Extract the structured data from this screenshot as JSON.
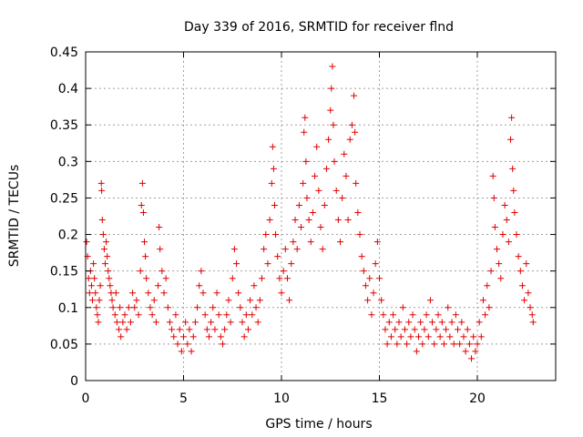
{
  "chart_data": {
    "type": "scatter",
    "title": "Day 339 of 2016, SRMTID for receiver flnd",
    "xlabel": "GPS time / hours",
    "ylabel": "SRMTID / TECUs",
    "xlim": [
      0,
      24
    ],
    "ylim": [
      0,
      0.45
    ],
    "x_ticks": [
      0,
      5,
      10,
      15,
      20
    ],
    "x_tick_labels": [
      "0",
      "5",
      "10",
      "15",
      "20"
    ],
    "y_ticks": [
      0,
      0.05,
      0.1,
      0.15,
      0.2,
      0.25,
      0.3,
      0.35,
      0.4,
      0.45
    ],
    "y_tick_labels": [
      "0",
      "0.05",
      "0.1",
      "0.15",
      "0.2",
      "0.25",
      "0.3",
      "0.35",
      "0.4",
      "0.45"
    ],
    "grid": true,
    "marker": "plus",
    "color": "#e00000",
    "series": [
      {
        "name": "SRMTID",
        "points": [
          [
            0.05,
            0.19
          ],
          [
            0.1,
            0.17
          ],
          [
            0.15,
            0.14
          ],
          [
            0.2,
            0.12
          ],
          [
            0.25,
            0.15
          ],
          [
            0.3,
            0.13
          ],
          [
            0.35,
            0.11
          ],
          [
            0.4,
            0.16
          ],
          [
            0.45,
            0.14
          ],
          [
            0.5,
            0.12
          ],
          [
            0.55,
            0.1
          ],
          [
            0.6,
            0.09
          ],
          [
            0.65,
            0.08
          ],
          [
            0.7,
            0.11
          ],
          [
            0.75,
            0.13
          ],
          [
            0.8,
            0.27
          ],
          [
            0.82,
            0.26
          ],
          [
            0.85,
            0.22
          ],
          [
            0.9,
            0.2
          ],
          [
            0.95,
            0.18
          ],
          [
            1.0,
            0.16
          ],
          [
            1.05,
            0.19
          ],
          [
            1.1,
            0.17
          ],
          [
            1.15,
            0.15
          ],
          [
            1.2,
            0.14
          ],
          [
            1.25,
            0.13
          ],
          [
            1.3,
            0.12
          ],
          [
            1.35,
            0.11
          ],
          [
            1.4,
            0.1
          ],
          [
            1.5,
            0.09
          ],
          [
            1.55,
            0.12
          ],
          [
            1.6,
            0.08
          ],
          [
            1.7,
            0.07
          ],
          [
            1.75,
            0.1
          ],
          [
            1.8,
            0.06
          ],
          [
            1.9,
            0.08
          ],
          [
            2.0,
            0.09
          ],
          [
            2.1,
            0.07
          ],
          [
            2.2,
            0.1
          ],
          [
            2.3,
            0.08
          ],
          [
            2.4,
            0.12
          ],
          [
            2.5,
            0.1
          ],
          [
            2.6,
            0.11
          ],
          [
            2.7,
            0.09
          ],
          [
            2.8,
            0.15
          ],
          [
            2.85,
            0.24
          ],
          [
            2.9,
            0.27
          ],
          [
            2.95,
            0.23
          ],
          [
            3.0,
            0.19
          ],
          [
            3.05,
            0.17
          ],
          [
            3.1,
            0.14
          ],
          [
            3.2,
            0.12
          ],
          [
            3.3,
            0.1
          ],
          [
            3.4,
            0.09
          ],
          [
            3.5,
            0.11
          ],
          [
            3.6,
            0.08
          ],
          [
            3.7,
            0.13
          ],
          [
            3.75,
            0.21
          ],
          [
            3.8,
            0.18
          ],
          [
            3.9,
            0.15
          ],
          [
            4.0,
            0.12
          ],
          [
            4.1,
            0.14
          ],
          [
            4.2,
            0.1
          ],
          [
            4.3,
            0.08
          ],
          [
            4.4,
            0.07
          ],
          [
            4.5,
            0.06
          ],
          [
            4.6,
            0.09
          ],
          [
            4.7,
            0.05
          ],
          [
            4.8,
            0.07
          ],
          [
            4.9,
            0.04
          ],
          [
            5.0,
            0.06
          ],
          [
            5.1,
            0.08
          ],
          [
            5.2,
            0.05
          ],
          [
            5.3,
            0.07
          ],
          [
            5.4,
            0.04
          ],
          [
            5.5,
            0.06
          ],
          [
            5.6,
            0.08
          ],
          [
            5.7,
            0.1
          ],
          [
            5.8,
            0.13
          ],
          [
            5.9,
            0.15
          ],
          [
            6.0,
            0.12
          ],
          [
            6.1,
            0.09
          ],
          [
            6.2,
            0.07
          ],
          [
            6.3,
            0.06
          ],
          [
            6.4,
            0.08
          ],
          [
            6.5,
            0.1
          ],
          [
            6.6,
            0.07
          ],
          [
            6.7,
            0.12
          ],
          [
            6.8,
            0.09
          ],
          [
            6.9,
            0.06
          ],
          [
            7.0,
            0.05
          ],
          [
            7.1,
            0.07
          ],
          [
            7.2,
            0.09
          ],
          [
            7.3,
            0.11
          ],
          [
            7.4,
            0.08
          ],
          [
            7.5,
            0.14
          ],
          [
            7.6,
            0.18
          ],
          [
            7.7,
            0.16
          ],
          [
            7.8,
            0.12
          ],
          [
            7.9,
            0.1
          ],
          [
            8.0,
            0.08
          ],
          [
            8.1,
            0.06
          ],
          [
            8.2,
            0.09
          ],
          [
            8.3,
            0.07
          ],
          [
            8.4,
            0.11
          ],
          [
            8.5,
            0.09
          ],
          [
            8.6,
            0.13
          ],
          [
            8.7,
            0.1
          ],
          [
            8.8,
            0.08
          ],
          [
            8.9,
            0.11
          ],
          [
            9.0,
            0.14
          ],
          [
            9.1,
            0.18
          ],
          [
            9.2,
            0.2
          ],
          [
            9.3,
            0.16
          ],
          [
            9.4,
            0.22
          ],
          [
            9.5,
            0.27
          ],
          [
            9.55,
            0.32
          ],
          [
            9.6,
            0.29
          ],
          [
            9.65,
            0.24
          ],
          [
            9.7,
            0.2
          ],
          [
            9.8,
            0.17
          ],
          [
            9.9,
            0.14
          ],
          [
            10.0,
            0.12
          ],
          [
            10.1,
            0.15
          ],
          [
            10.2,
            0.18
          ],
          [
            10.3,
            0.14
          ],
          [
            10.4,
            0.11
          ],
          [
            10.5,
            0.16
          ],
          [
            10.6,
            0.19
          ],
          [
            10.7,
            0.22
          ],
          [
            10.8,
            0.18
          ],
          [
            10.9,
            0.24
          ],
          [
            11.0,
            0.21
          ],
          [
            11.1,
            0.27
          ],
          [
            11.15,
            0.34
          ],
          [
            11.2,
            0.36
          ],
          [
            11.25,
            0.3
          ],
          [
            11.3,
            0.25
          ],
          [
            11.4,
            0.22
          ],
          [
            11.5,
            0.19
          ],
          [
            11.6,
            0.23
          ],
          [
            11.7,
            0.28
          ],
          [
            11.8,
            0.32
          ],
          [
            11.9,
            0.26
          ],
          [
            12.0,
            0.21
          ],
          [
            12.1,
            0.18
          ],
          [
            12.2,
            0.24
          ],
          [
            12.3,
            0.29
          ],
          [
            12.4,
            0.33
          ],
          [
            12.5,
            0.37
          ],
          [
            12.55,
            0.4
          ],
          [
            12.6,
            0.43
          ],
          [
            12.65,
            0.35
          ],
          [
            12.7,
            0.3
          ],
          [
            12.8,
            0.26
          ],
          [
            12.9,
            0.22
          ],
          [
            13.0,
            0.19
          ],
          [
            13.1,
            0.25
          ],
          [
            13.2,
            0.31
          ],
          [
            13.3,
            0.28
          ],
          [
            13.4,
            0.22
          ],
          [
            13.5,
            0.33
          ],
          [
            13.6,
            0.35
          ],
          [
            13.7,
            0.39
          ],
          [
            13.75,
            0.34
          ],
          [
            13.8,
            0.27
          ],
          [
            13.9,
            0.23
          ],
          [
            14.0,
            0.2
          ],
          [
            14.1,
            0.17
          ],
          [
            14.2,
            0.15
          ],
          [
            14.3,
            0.13
          ],
          [
            14.4,
            0.11
          ],
          [
            14.5,
            0.14
          ],
          [
            14.6,
            0.09
          ],
          [
            14.7,
            0.12
          ],
          [
            14.8,
            0.16
          ],
          [
            14.9,
            0.19
          ],
          [
            15.0,
            0.14
          ],
          [
            15.1,
            0.11
          ],
          [
            15.2,
            0.09
          ],
          [
            15.3,
            0.07
          ],
          [
            15.4,
            0.05
          ],
          [
            15.5,
            0.08
          ],
          [
            15.6,
            0.06
          ],
          [
            15.7,
            0.09
          ],
          [
            15.8,
            0.07
          ],
          [
            15.9,
            0.05
          ],
          [
            16.0,
            0.08
          ],
          [
            16.1,
            0.06
          ],
          [
            16.2,
            0.1
          ],
          [
            16.3,
            0.07
          ],
          [
            16.4,
            0.05
          ],
          [
            16.5,
            0.08
          ],
          [
            16.6,
            0.06
          ],
          [
            16.7,
            0.09
          ],
          [
            16.8,
            0.07
          ],
          [
            16.9,
            0.04
          ],
          [
            17.0,
            0.06
          ],
          [
            17.1,
            0.08
          ],
          [
            17.2,
            0.05
          ],
          [
            17.3,
            0.07
          ],
          [
            17.4,
            0.09
          ],
          [
            17.5,
            0.06
          ],
          [
            17.6,
            0.11
          ],
          [
            17.7,
            0.08
          ],
          [
            17.8,
            0.05
          ],
          [
            17.9,
            0.07
          ],
          [
            18.0,
            0.09
          ],
          [
            18.1,
            0.06
          ],
          [
            18.2,
            0.08
          ],
          [
            18.3,
            0.05
          ],
          [
            18.4,
            0.07
          ],
          [
            18.5,
            0.1
          ],
          [
            18.6,
            0.06
          ],
          [
            18.7,
            0.08
          ],
          [
            18.8,
            0.05
          ],
          [
            18.9,
            0.09
          ],
          [
            19.0,
            0.07
          ],
          [
            19.1,
            0.05
          ],
          [
            19.2,
            0.08
          ],
          [
            19.3,
            0.06
          ],
          [
            19.4,
            0.04
          ],
          [
            19.5,
            0.07
          ],
          [
            19.6,
            0.05
          ],
          [
            19.7,
            0.03
          ],
          [
            19.8,
            0.06
          ],
          [
            19.9,
            0.04
          ],
          [
            20.0,
            0.05
          ],
          [
            20.1,
            0.08
          ],
          [
            20.2,
            0.06
          ],
          [
            20.3,
            0.11
          ],
          [
            20.4,
            0.09
          ],
          [
            20.5,
            0.13
          ],
          [
            20.6,
            0.1
          ],
          [
            20.7,
            0.15
          ],
          [
            20.8,
            0.28
          ],
          [
            20.85,
            0.25
          ],
          [
            20.9,
            0.21
          ],
          [
            21.0,
            0.18
          ],
          [
            21.1,
            0.16
          ],
          [
            21.2,
            0.14
          ],
          [
            21.3,
            0.2
          ],
          [
            21.4,
            0.24
          ],
          [
            21.5,
            0.22
          ],
          [
            21.6,
            0.19
          ],
          [
            21.7,
            0.33
          ],
          [
            21.75,
            0.36
          ],
          [
            21.8,
            0.29
          ],
          [
            21.85,
            0.26
          ],
          [
            21.9,
            0.23
          ],
          [
            22.0,
            0.2
          ],
          [
            22.1,
            0.17
          ],
          [
            22.2,
            0.15
          ],
          [
            22.3,
            0.13
          ],
          [
            22.4,
            0.11
          ],
          [
            22.5,
            0.16
          ],
          [
            22.6,
            0.12
          ],
          [
            22.7,
            0.1
          ],
          [
            22.8,
            0.09
          ],
          [
            22.85,
            0.08
          ]
        ]
      }
    ]
  }
}
